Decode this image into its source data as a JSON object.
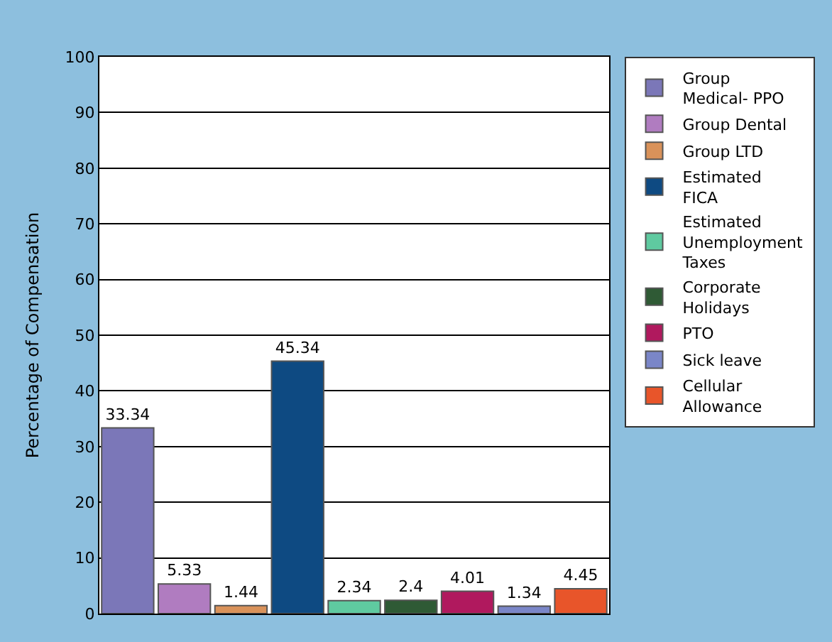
{
  "chart_data": {
    "type": "bar",
    "ylabel": "Percentage of Compensation",
    "categories": [
      null,
      null,
      null,
      null,
      null,
      null,
      null,
      null,
      null
    ],
    "series": [
      {
        "name": "Group Medical- PPO",
        "color": "#7b77b8",
        "values": [
          33.34,
          null,
          null,
          null,
          null,
          null,
          null,
          null,
          null
        ]
      },
      {
        "name": "Group Dental",
        "color": "#b07cc0",
        "values": [
          null,
          5.33,
          null,
          null,
          null,
          null,
          null,
          null,
          null
        ]
      },
      {
        "name": "Group LTD",
        "color": "#d9925a",
        "values": [
          null,
          null,
          1.44,
          null,
          null,
          null,
          null,
          null,
          null
        ]
      },
      {
        "name": "Estimated FICA",
        "color": "#0e4a82",
        "values": [
          null,
          null,
          null,
          45.34,
          null,
          null,
          null,
          null,
          null
        ]
      },
      {
        "name": "Estimated Unemployment Taxes",
        "color": "#5fcaa0",
        "values": [
          null,
          null,
          null,
          null,
          2.34,
          null,
          null,
          null,
          null
        ]
      },
      {
        "name": "Corporate Holidays",
        "color": "#2f5a35",
        "values": [
          null,
          null,
          null,
          null,
          null,
          2.4,
          null,
          null,
          null
        ]
      },
      {
        "name": "PTO",
        "color": "#b0195e",
        "values": [
          null,
          null,
          null,
          null,
          null,
          null,
          4.01,
          null,
          null
        ]
      },
      {
        "name": "Sick leave",
        "color": "#7a86c8",
        "values": [
          null,
          null,
          null,
          null,
          null,
          null,
          null,
          1.34,
          null
        ]
      },
      {
        "name": "Cellular Allowance",
        "color": "#e8552a",
        "values": [
          null,
          null,
          null,
          null,
          null,
          null,
          null,
          null,
          4.45
        ]
      }
    ],
    "ylim": [
      0,
      100
    ],
    "yticks": [
      0,
      10,
      20,
      30,
      40,
      50,
      60,
      70,
      80,
      90,
      100
    ],
    "grid": "y",
    "legend": "right",
    "data_labels": true
  }
}
